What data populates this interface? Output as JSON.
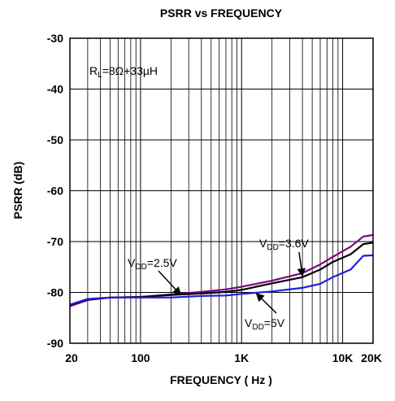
{
  "chart_data": {
    "type": "line",
    "title": "PSRR vs FREQUENCY",
    "xlabel": "FREQUENCY ( Hz )",
    "ylabel": "PSRR (dB)",
    "x_scale": "log",
    "xlim": [
      20,
      20000
    ],
    "ylim": [
      -90,
      -30
    ],
    "x_ticks": [
      {
        "value": 20,
        "label": "20"
      },
      {
        "value": 100,
        "label": "100"
      },
      {
        "value": 1000,
        "label": "1K"
      },
      {
        "value": 10000,
        "label": "10K"
      },
      {
        "value": 20000,
        "label": "20K"
      }
    ],
    "y_ticks": [
      {
        "value": -30,
        "label": "-30"
      },
      {
        "value": -40,
        "label": "-40"
      },
      {
        "value": -50,
        "label": "-50"
      },
      {
        "value": -60,
        "label": "-60"
      },
      {
        "value": -70,
        "label": "-70"
      },
      {
        "value": -80,
        "label": "-80"
      },
      {
        "value": -90,
        "label": "-90"
      }
    ],
    "grid": true,
    "series": [
      {
        "name": "VDD=2.5V",
        "color": "#800080",
        "points": [
          [
            20,
            -82.7
          ],
          [
            30,
            -81.5
          ],
          [
            50,
            -81.0
          ],
          [
            100,
            -80.9
          ],
          [
            200,
            -80.4
          ],
          [
            400,
            -79.9
          ],
          [
            700,
            -79.4
          ],
          [
            1000,
            -78.9
          ],
          [
            2000,
            -77.7
          ],
          [
            4000,
            -76.2
          ],
          [
            6000,
            -74.5
          ],
          [
            8000,
            -73.0
          ],
          [
            12000,
            -71.0
          ],
          [
            16000,
            -69.0
          ],
          [
            20000,
            -68.7
          ]
        ]
      },
      {
        "name": "VDD=3.6V",
        "color": "#000000",
        "points": [
          [
            20,
            -82.5
          ],
          [
            30,
            -81.4
          ],
          [
            50,
            -81.0
          ],
          [
            100,
            -80.9
          ],
          [
            200,
            -80.5
          ],
          [
            400,
            -80.2
          ],
          [
            700,
            -79.9
          ],
          [
            1000,
            -79.5
          ],
          [
            2000,
            -78.2
          ],
          [
            4000,
            -77.0
          ],
          [
            6000,
            -75.5
          ],
          [
            8000,
            -74.0
          ],
          [
            12000,
            -72.5
          ],
          [
            16000,
            -70.5
          ],
          [
            20000,
            -70.2
          ]
        ]
      },
      {
        "name": "VDD=5V",
        "color": "#1f1fe0",
        "points": [
          [
            20,
            -82.4
          ],
          [
            30,
            -81.3
          ],
          [
            50,
            -81.0
          ],
          [
            100,
            -81.0
          ],
          [
            200,
            -81.0
          ],
          [
            400,
            -80.7
          ],
          [
            700,
            -80.6
          ],
          [
            1000,
            -80.3
          ],
          [
            2000,
            -79.8
          ],
          [
            4000,
            -79.1
          ],
          [
            6000,
            -78.3
          ],
          [
            8000,
            -77.0
          ],
          [
            12000,
            -75.5
          ],
          [
            16000,
            -72.8
          ],
          [
            20000,
            -72.7
          ]
        ]
      }
    ],
    "annotations": [
      {
        "name": "load",
        "base": "R",
        "sub": "L",
        "rest": "=8Ω+33µH"
      },
      {
        "name": "vdd25",
        "base": "V",
        "sub": "DD",
        "rest": "=2.5V",
        "points_to": [
          250,
          -80.5
        ]
      },
      {
        "name": "vdd36",
        "base": "V",
        "sub": "DD",
        "rest": "=3.6V",
        "points_to": [
          4000,
          -76.8
        ]
      },
      {
        "name": "vdd5",
        "base": "V",
        "sub": "DD",
        "rest": "=5V",
        "points_to": [
          1400,
          -80.2
        ]
      }
    ]
  }
}
